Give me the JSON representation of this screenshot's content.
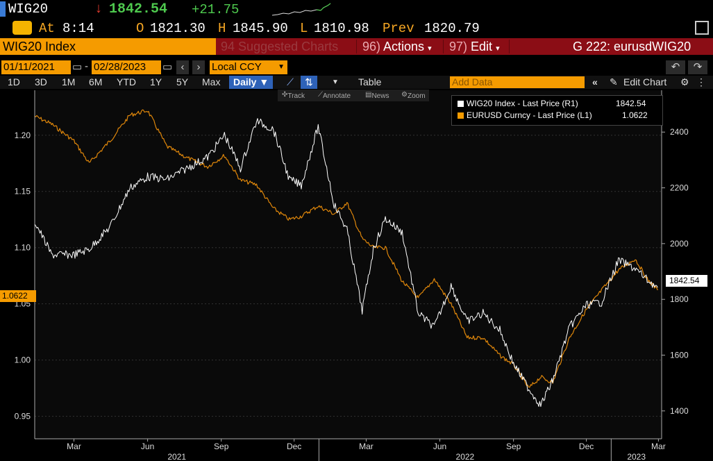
{
  "ticker": {
    "symbol": "WIG20",
    "direction": "down-arrow-icon",
    "last": "1842.54",
    "change": "+21.75"
  },
  "ohlc": {
    "at_label": "At",
    "time": "8:14",
    "o_label": "O",
    "open": "1821.30",
    "h_label": "H",
    "high": "1845.90",
    "l_label": "L",
    "low": "1810.98",
    "prev_label": "Prev",
    "prev": "1820.79"
  },
  "titlebar": {
    "security": "WIG20 Index",
    "suggested_num": "94",
    "suggested": "Suggested Charts",
    "actions_num": "96)",
    "actions": "Actions",
    "edit_num": "97)",
    "edit": "Edit",
    "right": "G 222: eurusdWIG20"
  },
  "range": {
    "start": "01/11/2021",
    "end": "02/28/2023",
    "currency": "Local CCY"
  },
  "periods": [
    "1D",
    "3D",
    "1M",
    "6M",
    "YTD",
    "1Y",
    "5Y",
    "Max"
  ],
  "frequency": "Daily",
  "table_label": "Table",
  "add_data_placeholder": "Add Data",
  "edit_chart": "Edit Chart",
  "toolbar": {
    "track": "Track",
    "annotate": "Annotate",
    "news": "News",
    "zoom": "Zoom"
  },
  "legend": [
    {
      "label": "WIG20 Index - Last Price (R1)",
      "value": "1842.54",
      "color": "#ffffff"
    },
    {
      "label": "EURUSD Curncy - Last Price (L1)",
      "value": "1.0622",
      "color": "#f59b00"
    }
  ],
  "tags": {
    "right": "1842.54",
    "left": "1.0622"
  },
  "colors": {
    "accent": "#f59b00",
    "title_bar": "#8b0d15",
    "up": "#4ec94e",
    "down": "#e23b2e",
    "wig_series": "#ffffff",
    "eurusd_series": "#e0870a"
  },
  "chart_data": {
    "type": "line",
    "x_ticks": [
      "Mar",
      "Jun",
      "Sep",
      "Dec",
      "Mar",
      "Jun",
      "Sep",
      "Dec",
      "Mar"
    ],
    "x_years": [
      "2021",
      "2022",
      "2023"
    ],
    "left_axis": {
      "ticks": [
        "1.20",
        "1.15",
        "1.10",
        "1.05",
        "1.00",
        "0.95"
      ],
      "range": [
        0.93,
        1.24
      ]
    },
    "right_axis": {
      "ticks": [
        "2400",
        "2200",
        "2000",
        "1800",
        "1600",
        "1400"
      ],
      "range": [
        1300,
        2550
      ]
    },
    "series": [
      {
        "name": "WIG20 Index - Last Price (R1)",
        "axis": "right",
        "x": [
          "2021-01-11",
          "2021-02-01",
          "2021-03-01",
          "2021-03-20",
          "2021-04-15",
          "2021-05-10",
          "2021-06-01",
          "2021-06-25",
          "2021-07-20",
          "2021-08-15",
          "2021-09-05",
          "2021-09-25",
          "2021-10-15",
          "2021-11-05",
          "2021-11-25",
          "2021-12-10",
          "2021-12-31",
          "2022-01-20",
          "2022-02-05",
          "2022-02-24",
          "2022-03-10",
          "2022-03-25",
          "2022-04-15",
          "2022-05-05",
          "2022-05-25",
          "2022-06-15",
          "2022-07-05",
          "2022-07-25",
          "2022-08-15",
          "2022-09-01",
          "2022-09-20",
          "2022-10-05",
          "2022-10-20",
          "2022-11-10",
          "2022-12-01",
          "2022-12-20",
          "2023-01-10",
          "2023-01-31",
          "2023-02-15",
          "2023-02-28"
        ],
        "values": [
          2080,
          1960,
          1960,
          1980,
          2060,
          2200,
          2240,
          2230,
          2270,
          2310,
          2390,
          2270,
          2440,
          2410,
          2230,
          2210,
          2420,
          2140,
          2050,
          1760,
          1980,
          2090,
          2040,
          1750,
          1700,
          1850,
          1720,
          1750,
          1690,
          1570,
          1480,
          1420,
          1510,
          1700,
          1780,
          1790,
          1940,
          1910,
          1870,
          1842.54
        ]
      },
      {
        "name": "EURUSD Curncy - Last Price (L1)",
        "axis": "left",
        "x": [
          "2021-01-11",
          "2021-02-01",
          "2021-03-01",
          "2021-03-20",
          "2021-04-15",
          "2021-05-10",
          "2021-06-01",
          "2021-06-25",
          "2021-07-20",
          "2021-08-15",
          "2021-09-05",
          "2021-09-25",
          "2021-10-15",
          "2021-11-05",
          "2021-11-25",
          "2021-12-10",
          "2021-12-31",
          "2022-01-20",
          "2022-02-05",
          "2022-02-24",
          "2022-03-10",
          "2022-03-25",
          "2022-04-15",
          "2022-05-05",
          "2022-05-25",
          "2022-06-15",
          "2022-07-05",
          "2022-07-25",
          "2022-08-15",
          "2022-09-01",
          "2022-09-20",
          "2022-10-05",
          "2022-10-20",
          "2022-11-10",
          "2022-12-01",
          "2022-12-20",
          "2023-01-10",
          "2023-01-31",
          "2023-02-15",
          "2023-02-28"
        ],
        "values": [
          1.217,
          1.21,
          1.195,
          1.175,
          1.195,
          1.218,
          1.222,
          1.19,
          1.18,
          1.172,
          1.182,
          1.16,
          1.156,
          1.135,
          1.125,
          1.128,
          1.137,
          1.13,
          1.14,
          1.108,
          1.1,
          1.1,
          1.07,
          1.055,
          1.072,
          1.05,
          1.02,
          1.02,
          1.004,
          0.996,
          0.975,
          0.985,
          0.98,
          1.02,
          1.045,
          1.062,
          1.08,
          1.09,
          1.072,
          1.0622
        ]
      }
    ]
  }
}
